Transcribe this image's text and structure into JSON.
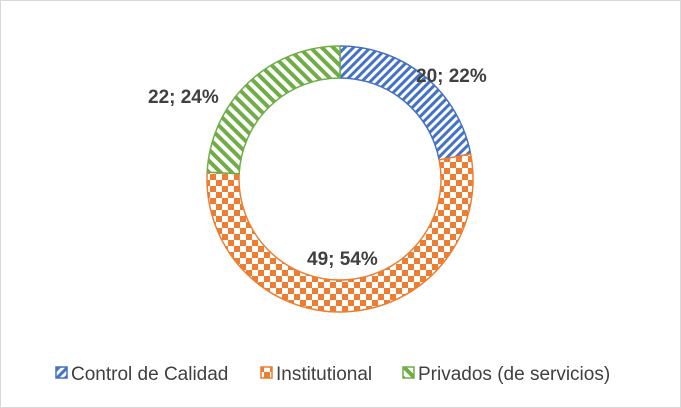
{
  "chart_data": {
    "type": "pie",
    "variant": "doughnut",
    "categories": [
      "Control de Calidad",
      "Institutional",
      "Privados (de servicios)"
    ],
    "values": [
      20,
      49,
      22
    ],
    "percents": [
      22,
      54,
      24
    ],
    "data_labels": [
      "20; 22%",
      "49; 54%",
      "22; 24%"
    ],
    "colors": [
      "#4472c4",
      "#ed7d31",
      "#70ad47"
    ],
    "patterns": [
      "diagonal-stripes",
      "checkerboard",
      "zigzag-stripes"
    ],
    "legend_position": "bottom",
    "title": ""
  }
}
